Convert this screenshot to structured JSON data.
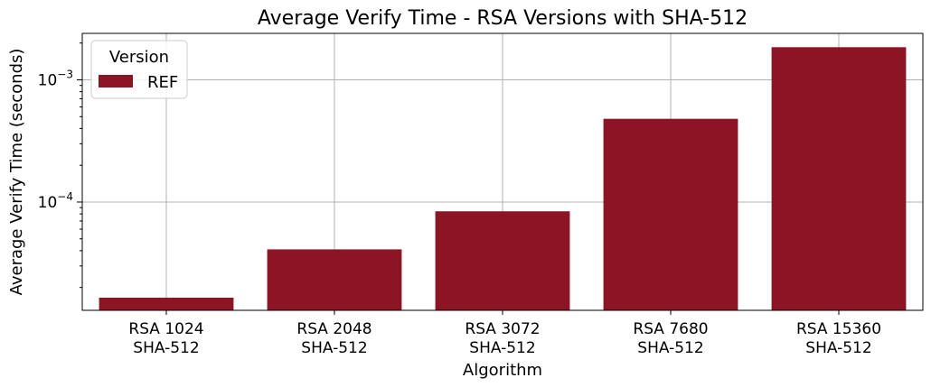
{
  "chart_data": {
    "type": "bar",
    "title": "Average Verify Time - RSA Versions with SHA-512",
    "xlabel": "Algorithm",
    "ylabel": "Average Verify Time (seconds)",
    "yscale": "log",
    "ylim": [
      1.3e-05,
      0.0024
    ],
    "categories": [
      [
        "RSA 1024",
        "SHA-512"
      ],
      [
        "RSA 2048",
        "SHA-512"
      ],
      [
        "RSA 3072",
        "SHA-512"
      ],
      [
        "RSA 7680",
        "SHA-512"
      ],
      [
        "RSA 15360",
        "SHA-512"
      ]
    ],
    "series": [
      {
        "name": "REF",
        "color": "#8b1525",
        "values": [
          1.65e-05,
          4.1e-05,
          8.4e-05,
          0.00048,
          0.00185
        ]
      }
    ],
    "yticks": [
      {
        "value": 0.0001,
        "base": "10",
        "exp": "−4"
      },
      {
        "value": 0.001,
        "base": "10",
        "exp": "−3"
      }
    ],
    "legend": {
      "title": "Version",
      "position": "top-left"
    },
    "grid": true
  }
}
